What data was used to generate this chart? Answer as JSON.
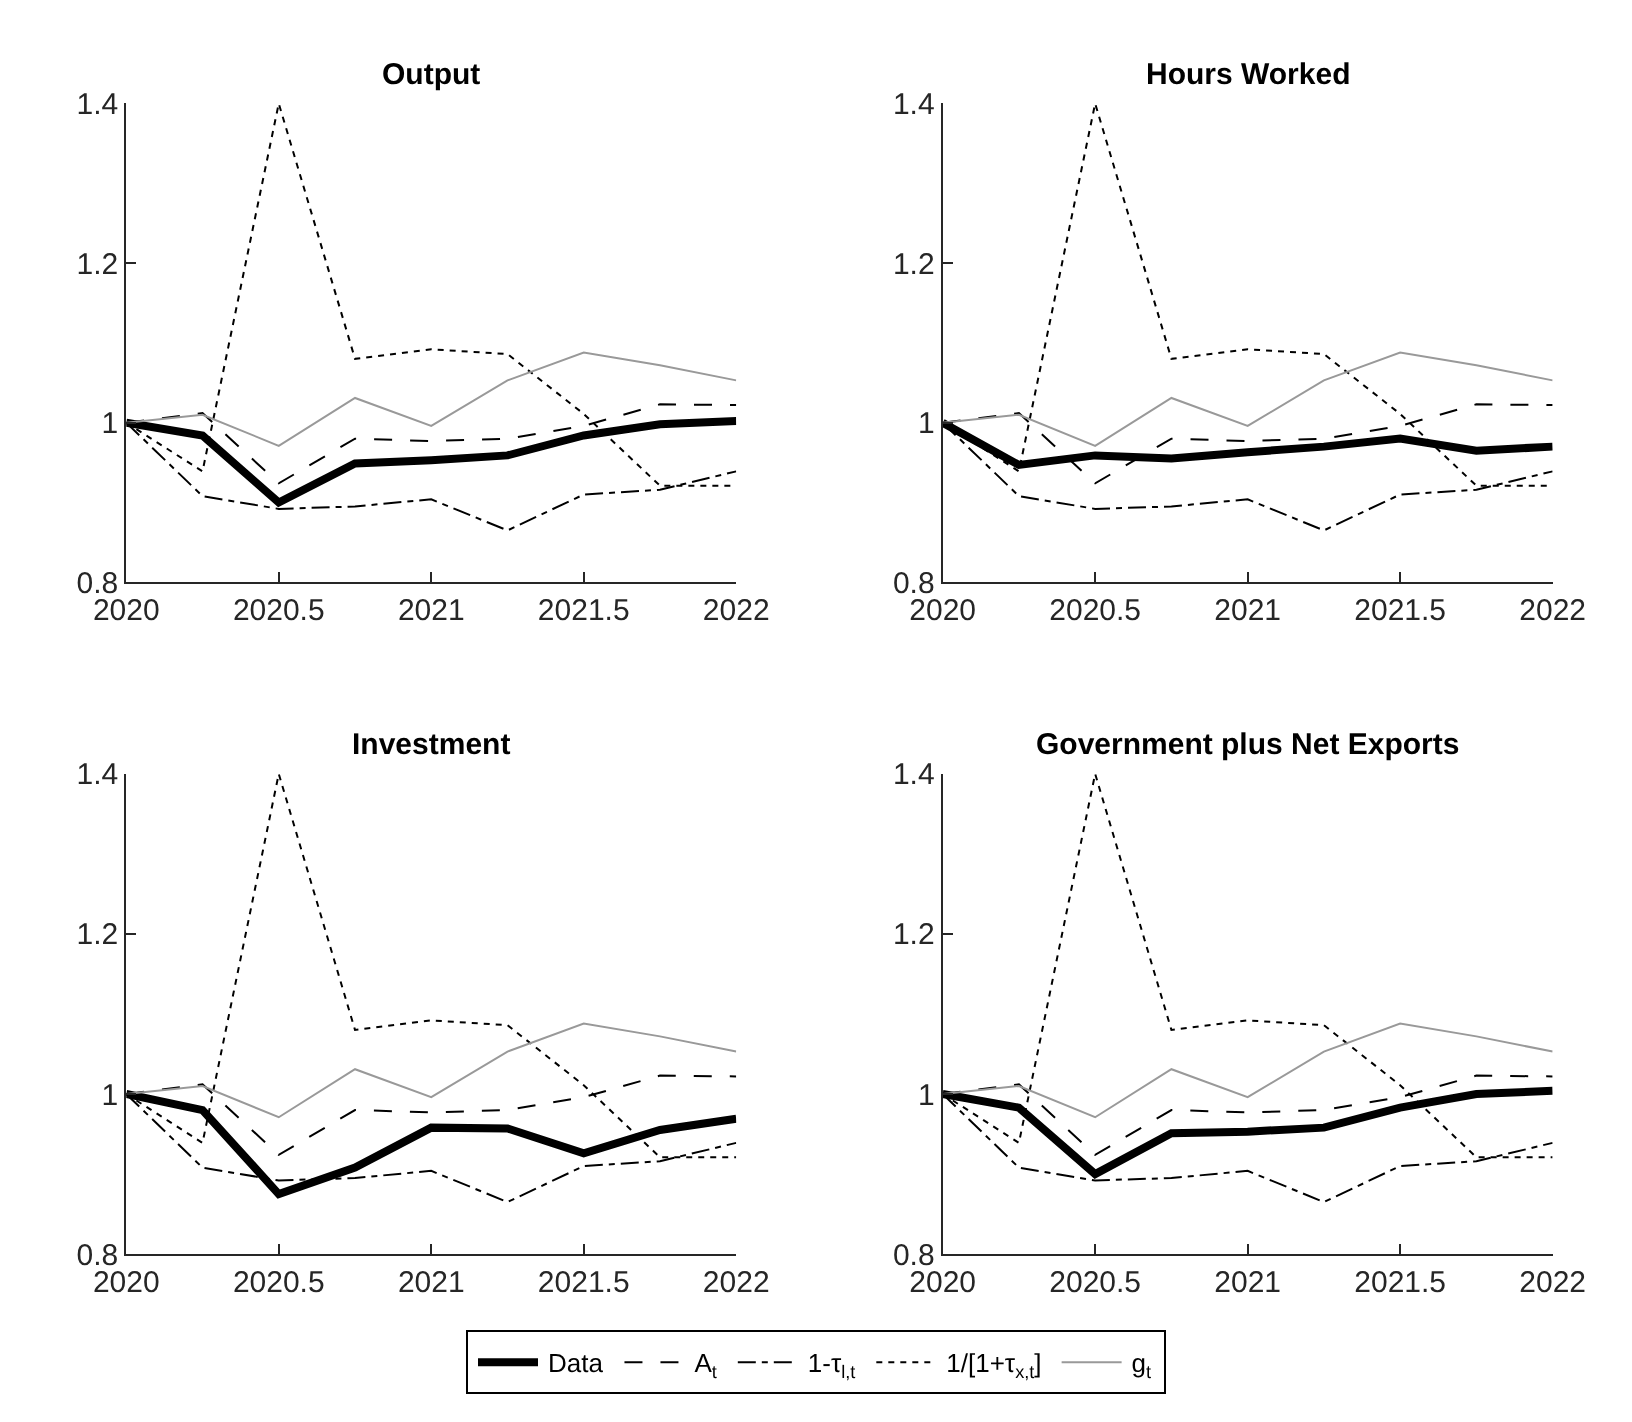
{
  "chart_data": [
    {
      "type": "line",
      "title": "Output",
      "x": [
        2020,
        2020.25,
        2020.5,
        2020.75,
        2021,
        2021.25,
        2021.5,
        2021.75,
        2022
      ],
      "xlim": [
        2020,
        2022
      ],
      "xticks": [
        2020,
        2020.5,
        2021,
        2021.5,
        2022
      ],
      "ylim": [
        0.8,
        1.4
      ],
      "yticks": [
        0.8,
        1,
        1.2,
        1.4
      ],
      "legend": "bottom",
      "series": [
        {
          "name": "Data",
          "color": "#000000",
          "line_style": "solid",
          "values": [
            1.0,
            0.984,
            0.9,
            0.949,
            0.953,
            0.959,
            0.984,
            0.998,
            1.002
          ]
        },
        {
          "name": "A$_{t}$",
          "color": "#000000",
          "line_style": "dashed",
          "values": [
            1.0,
            1.012,
            0.924,
            0.98,
            0.977,
            0.98,
            0.996,
            1.023,
            1.022
          ]
        },
        {
          "name": "1-τ$_{l,t}$",
          "color": "#000000",
          "line_style": "dashdot",
          "values": [
            1.0,
            0.908,
            0.892,
            0.895,
            0.904,
            0.865,
            0.91,
            0.916,
            0.939
          ]
        },
        {
          "name": "1/[1+τ$_{x,t}$]",
          "color": "#000000",
          "line_style": "dotted",
          "values": [
            1.0,
            0.939,
            1.4,
            1.08,
            1.092,
            1.086,
            1.011,
            0.921,
            0.921
          ]
        },
        {
          "name": "g$_{t}$",
          "color": "#999999",
          "line_style": "solid",
          "values": [
            1.0,
            1.01,
            0.971,
            1.031,
            0.996,
            1.053,
            1.088,
            1.072,
            1.053
          ]
        }
      ]
    },
    {
      "type": "line",
      "title": "Hours Worked",
      "x": [
        2020,
        2020.25,
        2020.5,
        2020.75,
        2021,
        2021.25,
        2021.5,
        2021.75,
        2022
      ],
      "xlim": [
        2020,
        2022
      ],
      "xticks": [
        2020,
        2020.5,
        2021,
        2021.5,
        2022
      ],
      "ylim": [
        0.8,
        1.4
      ],
      "yticks": [
        0.8,
        1,
        1.2,
        1.4
      ],
      "series": [
        {
          "name": "Data",
          "color": "#000000",
          "line_style": "solid",
          "values": [
            1.0,
            0.947,
            0.959,
            0.955,
            0.963,
            0.97,
            0.98,
            0.965,
            0.97
          ]
        },
        {
          "name": "A$_{t}$",
          "color": "#000000",
          "line_style": "dashed",
          "values": [
            1.0,
            1.012,
            0.924,
            0.98,
            0.977,
            0.98,
            0.996,
            1.023,
            1.022
          ]
        },
        {
          "name": "1-τ$_{l,t}$",
          "color": "#000000",
          "line_style": "dashdot",
          "values": [
            1.0,
            0.908,
            0.892,
            0.895,
            0.904,
            0.865,
            0.91,
            0.916,
            0.939
          ]
        },
        {
          "name": "1/[1+τ$_{x,t}$]",
          "color": "#000000",
          "line_style": "dotted",
          "values": [
            1.0,
            0.939,
            1.4,
            1.08,
            1.092,
            1.086,
            1.011,
            0.921,
            0.921
          ]
        },
        {
          "name": "g$_{t}$",
          "color": "#999999",
          "line_style": "solid",
          "values": [
            1.0,
            1.01,
            0.971,
            1.031,
            0.996,
            1.053,
            1.088,
            1.072,
            1.053
          ]
        }
      ]
    },
    {
      "type": "line",
      "title": "Investment",
      "x": [
        2020,
        2020.25,
        2020.5,
        2020.75,
        2021,
        2021.25,
        2021.5,
        2021.75,
        2022
      ],
      "xlim": [
        2020,
        2022
      ],
      "xticks": [
        2020,
        2020.5,
        2021,
        2021.5,
        2022
      ],
      "ylim": [
        0.8,
        1.4
      ],
      "yticks": [
        0.8,
        1,
        1.2,
        1.4
      ],
      "series": [
        {
          "name": "Data",
          "color": "#000000",
          "line_style": "solid",
          "values": [
            1.0,
            0.98,
            0.875,
            0.908,
            0.958,
            0.957,
            0.926,
            0.955,
            0.969
          ]
        },
        {
          "name": "A$_{t}$",
          "color": "#000000",
          "line_style": "dashed",
          "values": [
            1.0,
            1.012,
            0.924,
            0.98,
            0.977,
            0.98,
            0.996,
            1.023,
            1.022
          ]
        },
        {
          "name": "1-τ$_{l,t}$",
          "color": "#000000",
          "line_style": "dashdot",
          "values": [
            1.0,
            0.908,
            0.892,
            0.895,
            0.904,
            0.865,
            0.91,
            0.916,
            0.939
          ]
        },
        {
          "name": "1/[1+τ$_{x,t}$]",
          "color": "#000000",
          "line_style": "dotted",
          "values": [
            1.0,
            0.939,
            1.4,
            1.08,
            1.092,
            1.086,
            1.011,
            0.921,
            0.921
          ]
        },
        {
          "name": "g$_{t}$",
          "color": "#999999",
          "line_style": "solid",
          "values": [
            1.0,
            1.01,
            0.971,
            1.031,
            0.996,
            1.053,
            1.088,
            1.072,
            1.053
          ]
        }
      ]
    },
    {
      "type": "line",
      "title": "Government plus Net Exports",
      "x": [
        2020,
        2020.25,
        2020.5,
        2020.75,
        2021,
        2021.25,
        2021.5,
        2021.75,
        2022
      ],
      "xlim": [
        2020,
        2022
      ],
      "xticks": [
        2020,
        2020.5,
        2021,
        2021.5,
        2022
      ],
      "ylim": [
        0.8,
        1.4
      ],
      "yticks": [
        0.8,
        1,
        1.2,
        1.4
      ],
      "series": [
        {
          "name": "Data",
          "color": "#000000",
          "line_style": "solid",
          "values": [
            1.0,
            0.983,
            0.9,
            0.951,
            0.953,
            0.958,
            0.983,
            1.0,
            1.004
          ]
        },
        {
          "name": "A$_{t}$",
          "color": "#000000",
          "line_style": "dashed",
          "values": [
            1.0,
            1.012,
            0.924,
            0.98,
            0.977,
            0.98,
            0.996,
            1.023,
            1.022
          ]
        },
        {
          "name": "1-τ$_{l,t}$",
          "color": "#000000",
          "line_style": "dashdot",
          "values": [
            1.0,
            0.908,
            0.892,
            0.895,
            0.904,
            0.865,
            0.91,
            0.916,
            0.939
          ]
        },
        {
          "name": "1/[1+τ$_{x,t}$]",
          "color": "#000000",
          "line_style": "dotted",
          "values": [
            1.0,
            0.939,
            1.4,
            1.08,
            1.092,
            1.086,
            1.011,
            0.921,
            0.921
          ]
        },
        {
          "name": "g$_{t}$",
          "color": "#999999",
          "line_style": "solid",
          "values": [
            1.0,
            1.01,
            0.971,
            1.031,
            0.996,
            1.053,
            1.088,
            1.072,
            1.053
          ]
        }
      ]
    }
  ]
}
